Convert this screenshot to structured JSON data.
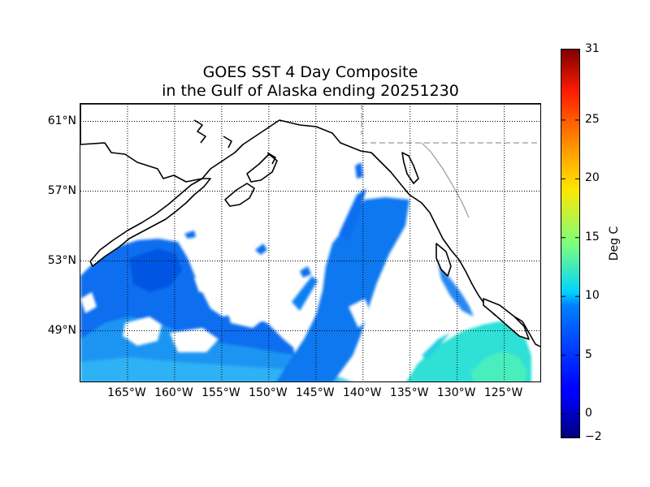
{
  "title": {
    "line1": "GOES SST 4 Day Composite",
    "line2": "in the Gulf of Alaska ending 20251230"
  },
  "map": {
    "lon_range": [
      -170,
      -121
    ],
    "lat_range": [
      46,
      62
    ],
    "lat_labels": [
      "61°N",
      "57°N",
      "53°N",
      "49°N"
    ],
    "lat_values": [
      61,
      57,
      53,
      49
    ],
    "lon_labels": [
      "165°W",
      "160°W",
      "155°W",
      "150°W",
      "145°W",
      "140°W",
      "135°W",
      "130°W",
      "125°W"
    ],
    "lon_values": [
      -165,
      -160,
      -155,
      -150,
      -145,
      -140,
      -135,
      -130,
      -125
    ],
    "gridlines": "dotted",
    "colors": {
      "land": "#ffffff",
      "no_data": "#ffffff",
      "coastline": "#000000",
      "border": "#999999"
    }
  },
  "colorbar": {
    "label": "Deg C",
    "min": -2,
    "max": 31,
    "ticks": [
      "31",
      "25",
      "20",
      "15",
      "10",
      "5",
      "0",
      "−2"
    ],
    "tick_values": [
      31,
      25,
      20,
      15,
      10,
      5,
      0,
      -2
    ],
    "colormap": "jet"
  }
}
